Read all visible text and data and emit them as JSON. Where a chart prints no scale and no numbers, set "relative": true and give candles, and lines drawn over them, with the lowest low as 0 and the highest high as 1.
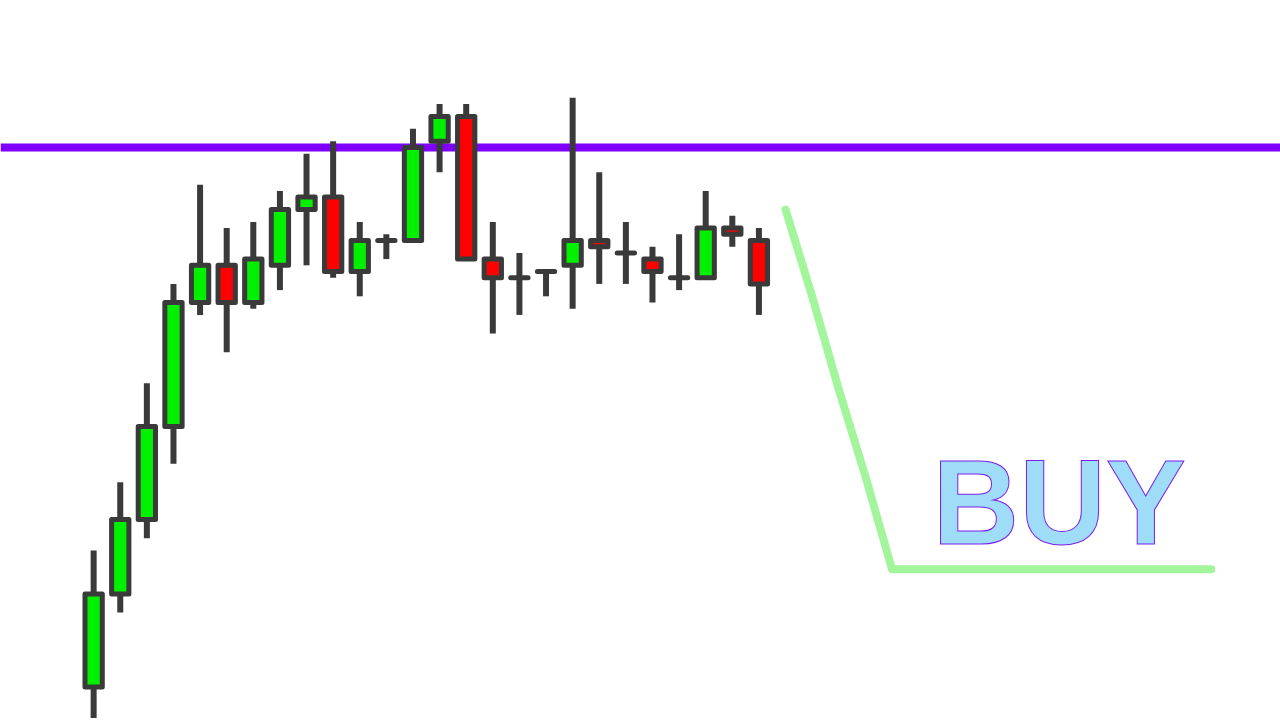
{
  "chart_data": {
    "type": "candlestick",
    "relative": true,
    "tick_labels": false,
    "categories": [
      null,
      null,
      null,
      null,
      null,
      null,
      null,
      null,
      null,
      null,
      null,
      null,
      null,
      null,
      null,
      null,
      null,
      null,
      null,
      null,
      null,
      null,
      null,
      null,
      null,
      null,
      null,
      null,
      null,
      null,
      null,
      null,
      null,
      null,
      null,
      null,
      null,
      null,
      null,
      null,
      null,
      null,
      null
    ],
    "ohlc": [
      [
        0.05,
        0.27,
        0.0,
        0.2
      ],
      [
        0.2,
        0.38,
        0.17,
        0.32
      ],
      [
        0.32,
        0.54,
        0.29,
        0.47
      ],
      [
        0.47,
        0.7,
        0.41,
        0.67
      ],
      [
        0.67,
        0.86,
        0.65,
        0.73
      ],
      [
        0.73,
        0.79,
        0.59,
        0.67
      ],
      [
        0.67,
        0.8,
        0.66,
        0.74
      ],
      [
        0.73,
        0.85,
        0.69,
        0.82
      ],
      [
        0.82,
        0.91,
        0.73,
        0.84
      ],
      [
        0.84,
        0.93,
        0.71,
        0.72
      ],
      [
        0.72,
        0.8,
        0.68,
        0.77
      ],
      [
        0.77,
        0.78,
        0.74,
        0.77
      ],
      [
        0.77,
        0.95,
        0.77,
        0.92
      ],
      [
        0.93,
        0.99,
        0.88,
        0.97
      ],
      [
        0.97,
        0.99,
        0.74,
        0.74
      ],
      [
        0.74,
        0.8,
        0.62,
        0.71
      ],
      [
        0.71,
        0.75,
        0.65,
        0.71
      ],
      [
        0.72,
        0.72,
        0.68,
        0.72
      ],
      [
        0.73,
        1.0,
        0.66,
        0.77
      ],
      [
        0.77,
        0.88,
        0.7,
        0.76
      ],
      [
        0.75,
        0.8,
        0.7,
        0.75
      ],
      [
        0.74,
        0.76,
        0.67,
        0.72
      ],
      [
        0.71,
        0.78,
        0.69,
        0.71
      ],
      [
        0.71,
        0.85,
        0.71,
        0.79
      ],
      [
        0.79,
        0.81,
        0.76,
        0.78
      ],
      [
        0.77,
        0.79,
        0.65,
        0.7
      ],
      null,
      null,
      null,
      null,
      null,
      null,
      null,
      null,
      null,
      null,
      null,
      null,
      null,
      null,
      null,
      null,
      null
    ],
    "colors": [
      "#00f000",
      "#00f000",
      "#00f000",
      "#00f000",
      "#00f000",
      "#ff0000",
      "#00f000",
      "#00f000",
      "#00f000",
      "#ff0000",
      "#00f000",
      "#3a3a3a",
      "#00f000",
      "#00f000",
      "#ff0000",
      "#ff0000",
      "#3a3a3a",
      "#3a3a3a",
      "#00f000",
      "#ff0000",
      "#3a3a3a",
      "#ff0000",
      "#3a3a3a",
      "#00f000",
      "#ff0000",
      "#ff0000",
      null,
      null,
      null,
      null,
      null,
      null,
      null,
      null,
      null,
      null,
      null,
      null,
      null,
      null,
      null,
      null,
      null
    ],
    "series": [
      {
        "type": "line",
        "color": "#a3f59b",
        "values": [
          null,
          null,
          null,
          null,
          null,
          null,
          null,
          null,
          null,
          null,
          null,
          null,
          null,
          null,
          null,
          null,
          null,
          null,
          null,
          null,
          null,
          null,
          null,
          null,
          null,
          null,
          0.82,
          0.68,
          0.53,
          0.39,
          0.24,
          0.24,
          0.24,
          0.24,
          0.24,
          0.24,
          0.24,
          0.24,
          0.24,
          0.24,
          0.24,
          0.24,
          0.24
        ]
      }
    ],
    "ref_lines": [
      {
        "axis": "y",
        "value": 0.92,
        "color": "#7f00ff"
      }
    ],
    "annotations": [
      "BUY"
    ]
  }
}
